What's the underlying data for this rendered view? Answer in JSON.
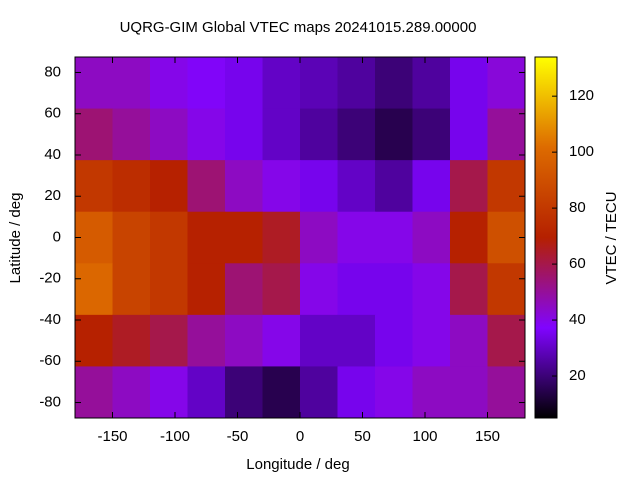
{
  "chart_data": {
    "type": "heatmap",
    "title": "UQRG-GIM Global VTEC maps 20241015.289.00000",
    "x_label": "Longitude / deg",
    "y_label": "Latitude / deg",
    "colorbar_label": "VTEC / TECU",
    "x": [
      -165,
      -135,
      -105,
      -75,
      -45,
      -15,
      15,
      45,
      75,
      105,
      135,
      165
    ],
    "y": [
      75,
      50,
      25,
      0,
      -25,
      -50,
      -75
    ],
    "values": [
      [
        45,
        45,
        40,
        38,
        35,
        30,
        28,
        25,
        20,
        25,
        35,
        42
      ],
      [
        55,
        50,
        45,
        40,
        35,
        30,
        25,
        20,
        15,
        20,
        35,
        50
      ],
      [
        80,
        75,
        70,
        55,
        45,
        40,
        35,
        30,
        25,
        35,
        60,
        80
      ],
      [
        95,
        85,
        80,
        70,
        70,
        65,
        45,
        40,
        40,
        45,
        70,
        90
      ],
      [
        100,
        85,
        80,
        70,
        55,
        60,
        40,
        35,
        35,
        40,
        60,
        80
      ],
      [
        70,
        65,
        60,
        50,
        45,
        40,
        30,
        30,
        35,
        40,
        45,
        60
      ],
      [
        50,
        45,
        40,
        30,
        20,
        15,
        25,
        35,
        40,
        45,
        45,
        50
      ]
    ],
    "xlim": [
      -180,
      180
    ],
    "xticks": [
      -150,
      -100,
      -50,
      0,
      50,
      100,
      150
    ],
    "ylim": [
      -87.5,
      87.5
    ],
    "yticks": [
      -80,
      -60,
      -40,
      -20,
      0,
      20,
      40,
      60,
      80
    ],
    "clim": [
      5,
      134
    ],
    "cticks": [
      20,
      40,
      60,
      80,
      100,
      120
    ],
    "colormap": [
      "#000000",
      "#8004ff",
      "#b52000",
      "#dd6b00",
      "#ffff00"
    ]
  }
}
